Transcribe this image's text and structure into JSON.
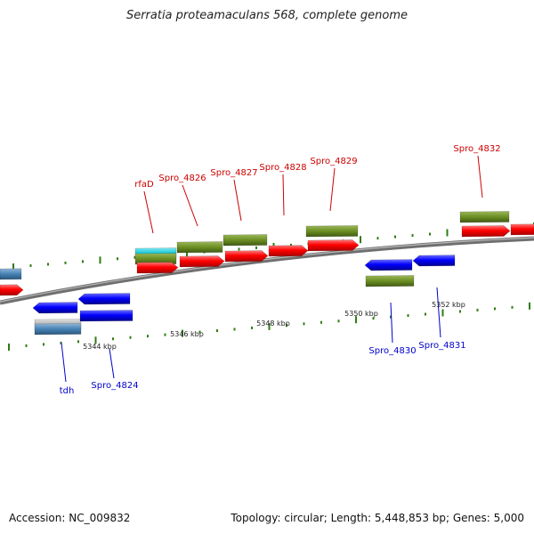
{
  "title": "Serratia proteamaculans 568, complete genome",
  "footer": {
    "accession": "Accession: NC_009832",
    "summary": "Topology: circular; Length: 5,448,853 bp; Genes: 5,000"
  },
  "colors": {
    "forward_label": "#cc0000",
    "reverse_label": "#0000cc",
    "tick": "#2e7d12",
    "backbone": "#777777",
    "cds_forward": "#ff0000",
    "cds_reverse": "#0000ff",
    "gene_olive": "#6b8e23",
    "gene_cyan": "#11c6d6",
    "gene_steel": "#4682b4",
    "gene_gray": "#b0b0b0"
  },
  "ruler": {
    "labels": [
      "5344 kbp",
      "5346 kbp",
      "5348 kbp",
      "5350 kbp",
      "5352 kbp"
    ]
  },
  "forward_genes": [
    "rfaD",
    "Spro_4826",
    "Spro_4827",
    "Spro_4828",
    "Spro_4829",
    "Spro_4832"
  ],
  "reverse_genes": [
    "tdh",
    "Spro_4824",
    "Spro_4830",
    "Spro_4831"
  ]
}
